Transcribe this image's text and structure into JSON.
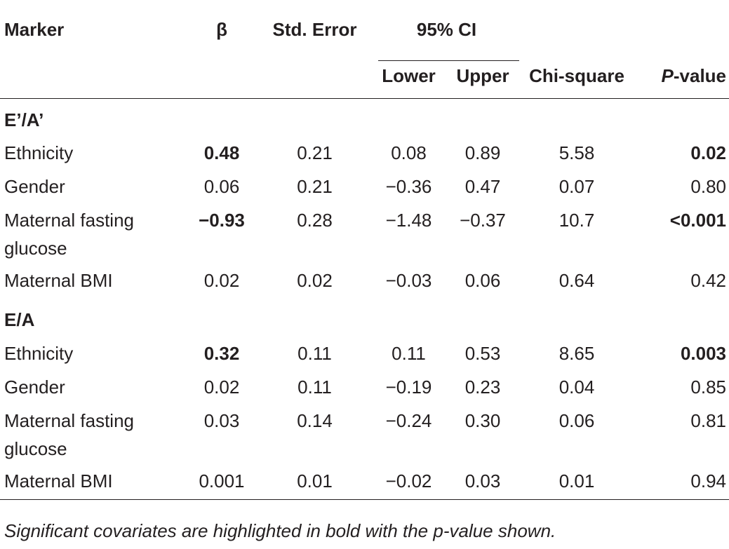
{
  "table": {
    "headers": {
      "marker": "Marker",
      "beta": "β",
      "std_error": "Std. Error",
      "ci": "95% CI",
      "lower": "Lower",
      "upper": "Upper",
      "chi_square": "Chi-square",
      "p_value_italic": "P",
      "p_value_rest": "-value"
    },
    "sections": [
      {
        "title": "E’/A’",
        "rows": [
          {
            "marker": "Ethnicity",
            "beta": "0.48",
            "beta_bold": true,
            "se": "0.21",
            "lower": "0.08",
            "upper": "0.89",
            "chi": "5.58",
            "p": "0.02",
            "p_bold": true
          },
          {
            "marker": "Gender",
            "beta": "0.06",
            "beta_bold": false,
            "se": "0.21",
            "lower": "−0.36",
            "upper": "0.47",
            "chi": "0.07",
            "p": "0.80",
            "p_bold": false
          },
          {
            "marker": "Maternal fasting glucose",
            "beta": "−0.93",
            "beta_bold": true,
            "se": "0.28",
            "lower": "−1.48",
            "upper": "−0.37",
            "chi": "10.7",
            "p": "<0.001",
            "p_bold": true
          },
          {
            "marker": "Maternal BMI",
            "beta": "0.02",
            "beta_bold": false,
            "se": "0.02",
            "lower": "−0.03",
            "upper": "0.06",
            "chi": "0.64",
            "p": "0.42",
            "p_bold": false
          }
        ]
      },
      {
        "title": "E/A",
        "rows": [
          {
            "marker": "Ethnicity",
            "beta": "0.32",
            "beta_bold": true,
            "se": "0.11",
            "lower": "0.11",
            "upper": "0.53",
            "chi": "8.65",
            "p": "0.003",
            "p_bold": true
          },
          {
            "marker": "Gender",
            "beta": "0.02",
            "beta_bold": false,
            "se": "0.11",
            "lower": "−0.19",
            "upper": "0.23",
            "chi": "0.04",
            "p": "0.85",
            "p_bold": false
          },
          {
            "marker": "Maternal fasting glucose",
            "beta": "0.03",
            "beta_bold": false,
            "se": "0.14",
            "lower": "−0.24",
            "upper": "0.30",
            "chi": "0.06",
            "p": "0.81",
            "p_bold": false
          },
          {
            "marker": "Maternal BMI",
            "beta": "0.001",
            "beta_bold": false,
            "se": "0.01",
            "lower": "−0.02",
            "upper": "0.03",
            "chi": "0.01",
            "p": "0.94",
            "p_bold": false
          }
        ]
      }
    ]
  },
  "footnote": "Significant covariates are highlighted in bold with the p-value shown.",
  "colors": {
    "text": "#231f20",
    "rule": "#231f20",
    "background": "#ffffff"
  }
}
